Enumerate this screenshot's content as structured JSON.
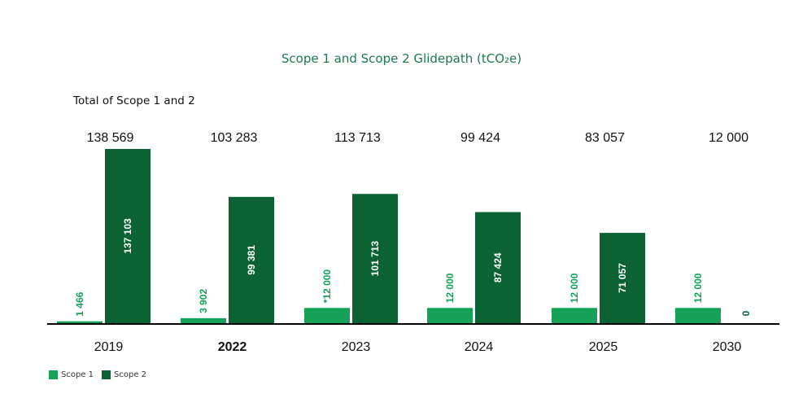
{
  "chart_data": {
    "type": "bar",
    "title": "Scope 1 and Scope 2 Glidepath (tCO₂e)",
    "totals_caption": "Total of Scope 1 and 2",
    "categories": [
      "2019",
      "2022",
      "2023",
      "2024",
      "2025",
      "2030"
    ],
    "bold_categories": [
      "2022"
    ],
    "totals": [
      "138 569",
      "103 283",
      "113 713",
      "99 424",
      "83 057",
      "12 000"
    ],
    "series": [
      {
        "name": "Scope 1",
        "color": "#15a258",
        "values": [
          1466,
          3902,
          12000,
          12000,
          12000,
          12000
        ],
        "labels": [
          "1 466",
          "3 902",
          "*12 000",
          "12 000",
          "12 000",
          "12 000"
        ]
      },
      {
        "name": "Scope 2",
        "color": "#0b6334",
        "values": [
          137103,
          99381,
          101713,
          87424,
          71057,
          0
        ],
        "labels": [
          "137 103",
          "99 381",
          "101 713",
          "87 424",
          "71 057",
          "0"
        ]
      }
    ],
    "ylim": [
      0,
      137103
    ],
    "grid": false,
    "legend_position": "bottom-left"
  }
}
